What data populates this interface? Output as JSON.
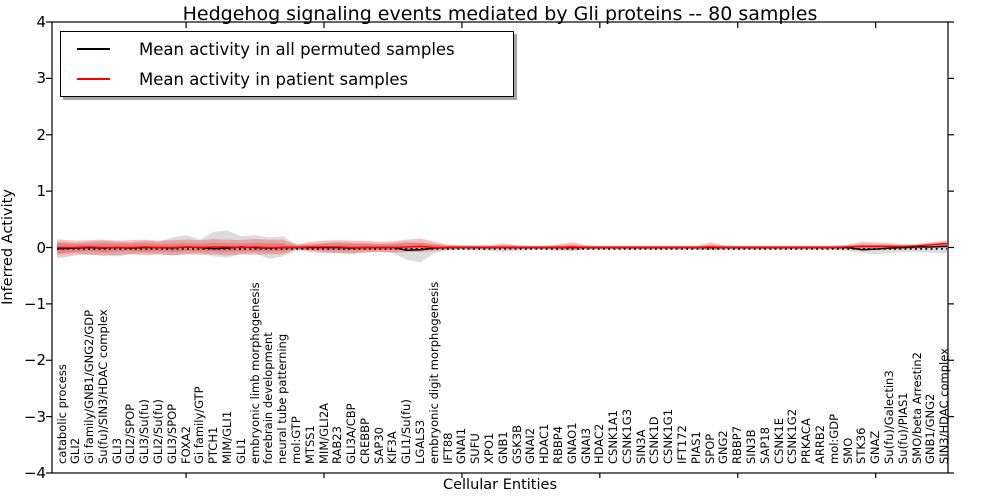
{
  "figure": {
    "title": "Hedgehog signaling events mediated by Gli proteins -- 80 samples",
    "xlabel": "Cellular Entities",
    "ylabel": "Inferred Activity",
    "legend": [
      {
        "label": "Mean activity in all permuted samples",
        "color": "#000000"
      },
      {
        "label": "Mean activity in patient samples",
        "color": "#ff0000"
      }
    ],
    "ytick_labels": [
      "4",
      "3",
      "2",
      "1",
      "0",
      "−1",
      "−2",
      "−3",
      "−4"
    ]
  },
  "chart_data": {
    "type": "line",
    "title": "Hedgehog signaling events mediated by Gli proteins -- 80 samples",
    "xlabel": "Cellular Entities",
    "ylabel": "Inferred Activity",
    "ylim": [
      -4,
      4
    ],
    "yticks": [
      4,
      3,
      2,
      1,
      0,
      -1,
      -2,
      -3,
      -4
    ],
    "grid": false,
    "legend_position": "upper left",
    "categories": [
      "catabolic process",
      "GLI2",
      "Gi family/GNB1/GNG2/GDP",
      "Su(fu)/SIN3/HDAC complex",
      "GLI3",
      "GLI2/SPOP",
      "GLI3/Su(fu)",
      "GLI2/Su(fu)",
      "GLI3/SPOP",
      "FOXA2",
      "Gi family/GTP",
      "PTCH1",
      "MIM/GLI1",
      "GLI1",
      "embryonic limb morphogenesis",
      "forebrain development",
      "neural tube patterning",
      "mol:GTP",
      "MTSS1",
      "MIM/GLI2A",
      "RAB23",
      "GLI3A/CBP",
      "CREBBP",
      "SAP30",
      "KIF3A",
      "GLI1/Su(fu)",
      "LGALS3",
      "embryonic digit morphogenesis",
      "IFT88",
      "GNAI1",
      "SUFU",
      "XPO1",
      "GNB1",
      "GSK3B",
      "GNAI2",
      "HDAC1",
      "RBBP4",
      "GNAO1",
      "GNAI3",
      "HDAC2",
      "CSNK1A1",
      "CSNK1G3",
      "SIN3A",
      "CSNK1D",
      "CSNK1G1",
      "IFT172",
      "PIAS1",
      "SPOP",
      "GNG2",
      "RBBP7",
      "SIN3B",
      "SAP18",
      "CSNK1E",
      "CSNK1G2",
      "PRKACA",
      "ARRB2",
      "mol:GDP",
      "SMO",
      "STK36",
      "GNAZ",
      "Su(fu)/Galectin3",
      "Su(fu)/PIAS1",
      "SMO/beta Arrestin2",
      "GNB1/GNG2",
      "SIN3/HDAC complex"
    ],
    "series": [
      {
        "name": "Mean activity in all permuted samples",
        "color": "#000000",
        "style": "solid",
        "values": [
          -0.02,
          -0.01,
          0,
          -0.01,
          0,
          -0.01,
          0,
          0,
          -0.01,
          0.01,
          0,
          -0.02,
          -0.01,
          0.01,
          0,
          -0.01,
          0,
          0,
          0,
          0,
          0,
          -0.01,
          0,
          0,
          0,
          -0.05,
          -0.04,
          -0.01,
          0,
          0,
          0,
          0,
          0,
          0,
          0,
          0,
          0,
          0,
          0,
          0,
          0,
          0,
          0,
          0,
          0,
          0,
          0,
          0,
          0,
          0,
          0,
          0,
          0,
          0,
          0,
          0,
          0,
          0,
          -0.04,
          -0.03,
          -0.01,
          0,
          0.01,
          0.01,
          0.02
        ]
      },
      {
        "name": "Mean activity in patient samples",
        "color": "#ff0000",
        "style": "solid",
        "values": [
          0,
          0,
          0.01,
          0,
          0,
          0,
          0.01,
          0,
          0,
          0.01,
          0,
          0.01,
          0.01,
          0,
          0.01,
          0,
          0,
          0,
          0.01,
          0.01,
          0.01,
          0,
          0,
          0,
          0,
          0.01,
          0.02,
          0,
          0,
          0,
          0,
          0,
          0,
          0,
          0,
          0,
          0,
          0.01,
          0,
          0,
          0,
          0,
          0,
          0,
          0,
          0,
          0,
          0.01,
          0,
          0,
          0,
          0,
          0,
          0,
          0,
          0,
          0,
          0.01,
          0.02,
          0.02,
          0.02,
          0.02,
          0.03,
          0.05,
          0.07
        ]
      }
    ],
    "bands": [
      {
        "name": "permuted-samples-envelope",
        "color": "rgba(128,128,128,0.28)",
        "upper": [
          0.1,
          0.08,
          0.1,
          0.12,
          0.1,
          0.09,
          0.12,
          0.1,
          0.18,
          0.22,
          0.14,
          0.28,
          0.3,
          0.2,
          0.22,
          0.18,
          0.2,
          0.06,
          0.05,
          0.08,
          0.1,
          0.08,
          0.08,
          0.06,
          0.08,
          0.1,
          0.08,
          0.06,
          0.04,
          0.04,
          0.03,
          0.03,
          0.04,
          0.04,
          0.03,
          0.03,
          0.04,
          0.04,
          0.03,
          0.03,
          0.03,
          0.03,
          0.03,
          0.03,
          0.03,
          0.03,
          0.03,
          0.03,
          0.03,
          0.03,
          0.03,
          0.03,
          0.03,
          0.03,
          0.03,
          0.03,
          0.03,
          0.04,
          0.05,
          0.05,
          0.04,
          0.04,
          0.04,
          0.05,
          0.06
        ],
        "lower": [
          -0.12,
          -0.1,
          -0.14,
          -0.12,
          -0.16,
          -0.12,
          -0.1,
          -0.12,
          -0.14,
          -0.12,
          -0.1,
          -0.16,
          -0.18,
          -0.12,
          -0.1,
          -0.2,
          -0.16,
          -0.05,
          -0.05,
          -0.08,
          -0.1,
          -0.12,
          -0.08,
          -0.08,
          -0.1,
          -0.22,
          -0.26,
          -0.1,
          -0.05,
          -0.04,
          -0.05,
          -0.06,
          -0.08,
          -0.06,
          -0.04,
          -0.04,
          -0.06,
          -0.06,
          -0.04,
          -0.04,
          -0.04,
          -0.04,
          -0.04,
          -0.04,
          -0.04,
          -0.04,
          -0.04,
          -0.04,
          -0.04,
          -0.04,
          -0.04,
          -0.04,
          -0.04,
          -0.04,
          -0.04,
          -0.04,
          -0.04,
          -0.06,
          -0.1,
          -0.12,
          -0.1,
          -0.08,
          -0.08,
          -0.09,
          -0.1
        ]
      },
      {
        "name": "patient-samples-envelope",
        "color": "rgba(235,45,45,0.30)",
        "double": true,
        "upper": [
          0.14,
          0.12,
          0.13,
          0.14,
          0.12,
          0.13,
          0.14,
          0.12,
          0.13,
          0.14,
          0.13,
          0.15,
          0.14,
          0.13,
          0.15,
          0.14,
          0.14,
          0.05,
          0.1,
          0.12,
          0.13,
          0.12,
          0.12,
          0.1,
          0.11,
          0.14,
          0.16,
          0.1,
          0.05,
          0.04,
          0.04,
          0.04,
          0.07,
          0.04,
          0.03,
          0.03,
          0.05,
          0.09,
          0.04,
          0.03,
          0.03,
          0.03,
          0.03,
          0.03,
          0.03,
          0.03,
          0.03,
          0.09,
          0.04,
          0.03,
          0.03,
          0.03,
          0.03,
          0.03,
          0.03,
          0.03,
          0.03,
          0.05,
          0.1,
          0.09,
          0.08,
          0.05,
          0.06,
          0.09,
          0.12
        ],
        "lower": [
          -0.18,
          -0.14,
          -0.12,
          -0.15,
          -0.13,
          -0.12,
          -0.14,
          -0.12,
          -0.14,
          -0.12,
          -0.13,
          -0.12,
          -0.14,
          -0.12,
          -0.13,
          -0.12,
          -0.12,
          -0.04,
          -0.08,
          -0.1,
          -0.1,
          -0.1,
          -0.09,
          -0.08,
          -0.09,
          -0.08,
          -0.08,
          -0.06,
          -0.04,
          -0.03,
          -0.03,
          -0.03,
          -0.03,
          -0.03,
          -0.03,
          -0.03,
          -0.04,
          -0.05,
          -0.03,
          -0.03,
          -0.03,
          -0.03,
          -0.03,
          -0.03,
          -0.03,
          -0.03,
          -0.03,
          -0.05,
          -0.03,
          -0.03,
          -0.03,
          -0.03,
          -0.03,
          -0.03,
          -0.03,
          -0.03,
          -0.03,
          -0.03,
          -0.04,
          -0.04,
          -0.04,
          -0.03,
          -0.02,
          -0.01,
          0.0
        ]
      }
    ],
    "zero_line": {
      "style": "dotted",
      "color": "#000000",
      "y": -0.025
    },
    "x_major_tick_indices": [
      9,
      19,
      29,
      39,
      49,
      59
    ]
  }
}
